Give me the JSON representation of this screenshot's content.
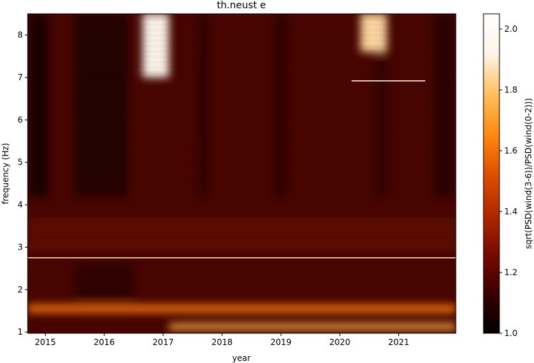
{
  "chart_data": {
    "type": "heatmap",
    "title": "th.neust e",
    "xlabel": "year",
    "ylabel": "frequency (Hz)",
    "xlim": [
      2014.7,
      2021.97
    ],
    "ylim": [
      0.97,
      8.5
    ],
    "x_ticks": [
      "2015",
      "2016",
      "2017",
      "2018",
      "2019",
      "2020",
      "2021"
    ],
    "y_ticks": [
      "1",
      "2",
      "3",
      "4",
      "5",
      "6",
      "7",
      "8"
    ],
    "colorbar": {
      "label": "sqrt(PSD(wind(3-6))/PSD(wind(0-2)))",
      "range": [
        1.0,
        2.05
      ],
      "ticks": [
        "1.0",
        "1.2",
        "1.4",
        "1.6",
        "1.8",
        "2.0"
      ],
      "colormap": [
        "#000000",
        "#3a0000",
        "#7a0a00",
        "#b02a00",
        "#e05000",
        "#ff8a10",
        "#ffc060",
        "#fff4e8",
        "#ffffff"
      ]
    },
    "bright_regions": [
      {
        "x": [
          2016.65,
          2017.1
        ],
        "y": [
          7.0,
          8.5
        ],
        "value": 1.95
      },
      {
        "x": [
          2020.35,
          2020.8
        ],
        "y": [
          7.6,
          8.5
        ],
        "value": 1.85
      },
      {
        "x": [
          2017.1,
          2021.97
        ],
        "y": [
          1.05,
          1.2
        ],
        "value": 1.75
      },
      {
        "x": [
          2014.7,
          2021.97
        ],
        "y": [
          1.45,
          1.65
        ],
        "value": 1.6
      }
    ],
    "lines": [
      {
        "y": 2.75,
        "value": 1.85,
        "x": [
          2014.7,
          2021.97
        ]
      },
      {
        "y": 6.92,
        "value": 1.9,
        "x": [
          2020.2,
          2021.45
        ]
      }
    ]
  }
}
